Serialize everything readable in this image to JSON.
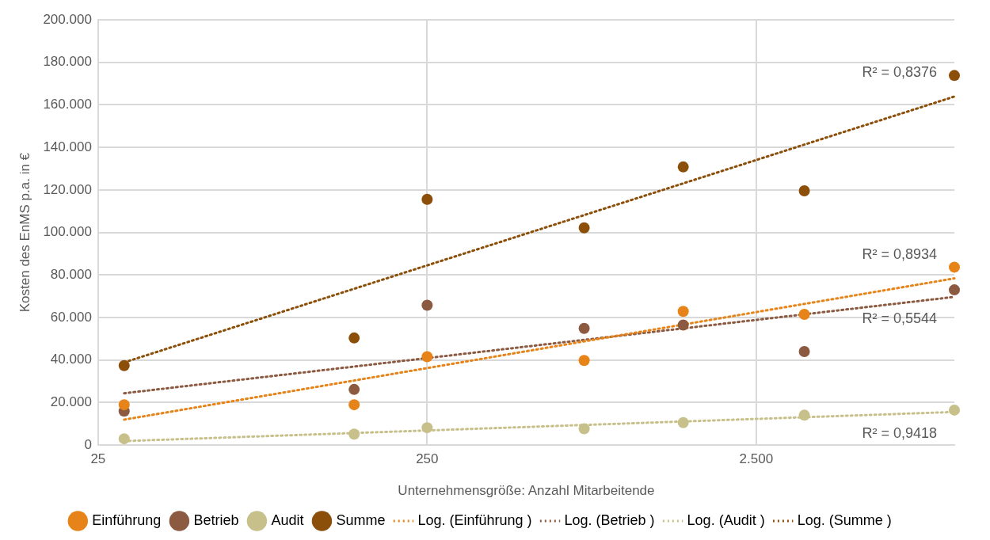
{
  "chart_data": {
    "type": "scatter",
    "xlabel": "Unternehmensgröße: Anzahl Mitarbeitende",
    "ylabel": "Kosten des EnMS p.a. in €",
    "x": [
      30,
      150,
      250,
      750,
      1500,
      3500,
      10000
    ],
    "series": [
      {
        "name": "Einführung",
        "color": "#e6841a",
        "values": [
          19000,
          19000,
          41600,
          39800,
          62900,
          61500,
          83700
        ]
      },
      {
        "name": "Betrieb",
        "color": "#8b5a41",
        "values": [
          16000,
          26200,
          65800,
          54900,
          56500,
          44000,
          73000
        ]
      },
      {
        "name": "Audit",
        "color": "#c8c08a",
        "values": [
          3000,
          5200,
          8200,
          7700,
          10600,
          14100,
          16500
        ]
      },
      {
        "name": "Summe",
        "color": "#8c4f0a",
        "values": [
          37400,
          50400,
          115600,
          102200,
          130800,
          119600,
          173800
        ]
      },
      {
        "name": "Log. (Einführung )",
        "type": "line",
        "line_style": "dotted",
        "marker": "none",
        "color": "#e6841a",
        "values": [
          12000,
          null,
          null,
          null,
          null,
          null,
          78400
        ]
      },
      {
        "name": "Log. (Betrieb )",
        "type": "line",
        "line_style": "dotted",
        "marker": "none",
        "color": "#8b5a41",
        "values": [
          24400,
          null,
          null,
          null,
          null,
          null,
          69700
        ]
      },
      {
        "name": "Log. (Audit )",
        "type": "line",
        "line_style": "dotted",
        "marker": "none",
        "color": "#c8c08a",
        "values": [
          1900,
          null,
          null,
          null,
          null,
          null,
          15600
        ]
      },
      {
        "name": "Log. (Summe )",
        "type": "line",
        "line_style": "dotted",
        "marker": "none",
        "color": "#8c4f0a",
        "values": [
          38900,
          null,
          null,
          null,
          null,
          null,
          163900
        ]
      }
    ],
    "marker": "circle",
    "log": "x",
    "xlim": [
      25,
      10000
    ],
    "xticks": [
      25,
      250,
      {
        "value": 2500,
        "label": "2.500"
      }
    ],
    "ylim": [
      0,
      200000
    ],
    "yticks": [
      0,
      {
        "value": 20000,
        "label": "20.000"
      },
      {
        "value": 40000,
        "label": "40.000"
      },
      {
        "value": 60000,
        "label": "60.000"
      },
      {
        "value": 80000,
        "label": "80.000"
      },
      {
        "value": 100000,
        "label": "100.000"
      },
      {
        "value": 120000,
        "label": "120.000"
      },
      {
        "value": 140000,
        "label": "140.000"
      },
      {
        "value": 160000,
        "label": "160.000"
      },
      {
        "value": 180000,
        "label": "180.000"
      },
      {
        "value": 200000,
        "label": "200.000"
      }
    ],
    "grid": true,
    "legend": "bottom",
    "annotations": [
      "R² = 0,8376",
      "R² = 0,8934",
      "R² = 0,5544",
      "R² = 0,9418"
    ]
  }
}
